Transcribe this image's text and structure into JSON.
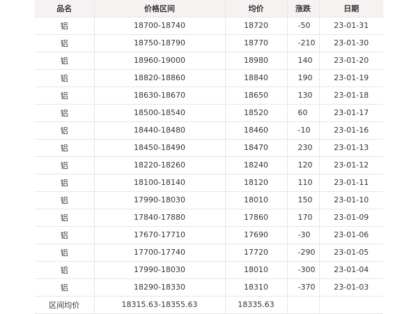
{
  "table": {
    "header": [
      "品名",
      "价格区间",
      "均价",
      "涨跌",
      "日期"
    ],
    "rows": [
      [
        "铝",
        "18700-18740",
        18720,
        -50,
        "23-01-31"
      ],
      [
        "铝",
        "18750-18790",
        18770,
        -210,
        "23-01-30"
      ],
      [
        "铝",
        "18960-19000",
        18980,
        140,
        "23-01-20"
      ],
      [
        "铝",
        "18820-18860",
        18840,
        190,
        "23-01-19"
      ],
      [
        "铝",
        "18630-18670",
        18650,
        130,
        "23-01-18"
      ],
      [
        "铝",
        "18500-18540",
        18520,
        60,
        "23-01-17"
      ],
      [
        "铝",
        "18440-18480",
        18460,
        -10,
        "23-01-16"
      ],
      [
        "铝",
        "18450-18490",
        18470,
        230,
        "23-01-13"
      ],
      [
        "铝",
        "18220-18260",
        18240,
        120,
        "23-01-12"
      ],
      [
        "铝",
        "18100-18140",
        18120,
        110,
        "23-01-11"
      ],
      [
        "铝",
        "17990-18030",
        18010,
        150,
        "23-01-10"
      ],
      [
        "铝",
        "17840-17880",
        17860,
        170,
        "23-01-09"
      ],
      [
        "铝",
        "17670-17710",
        17690,
        -30,
        "23-01-06"
      ],
      [
        "铝",
        "17700-17740",
        17720,
        -290,
        "23-01-05"
      ],
      [
        "铝",
        "17990-18030",
        18010,
        -300,
        "23-01-04"
      ],
      [
        "铝",
        "18290-18330",
        18310,
        -370,
        "23-01-03"
      ]
    ],
    "summary": [
      "区间均价",
      "18315.63-18355.63",
      "18335.63"
    ]
  }
}
